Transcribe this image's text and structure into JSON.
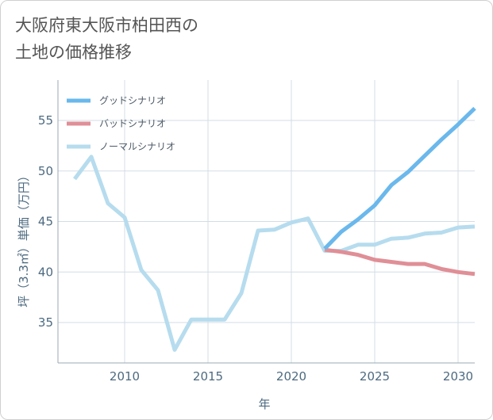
{
  "title_lines": [
    "大阪府東大阪市柏田西の",
    "土地の価格推移"
  ],
  "chart_data": {
    "type": "line",
    "title": "大阪府東大阪市柏田西の土地の価格推移",
    "xlabel": "年",
    "ylabel": "坪（3.3㎡）単価（万円）",
    "xlim": [
      2006,
      2031
    ],
    "ylim": [
      31,
      59
    ],
    "xticks": [
      2010,
      2015,
      2020,
      2025,
      2030
    ],
    "yticks": [
      35,
      40,
      45,
      50,
      55
    ],
    "grid": true,
    "legend_position": "top-left",
    "series": [
      {
        "name": "グッドシナリオ",
        "color": "#6ab8ec",
        "x": [
          2022,
          2023,
          2024,
          2025,
          2026,
          2027,
          2028,
          2029,
          2030,
          2031
        ],
        "y": [
          42.3,
          44.0,
          45.2,
          46.6,
          48.6,
          49.9,
          51.5,
          53.1,
          54.6,
          56.2
        ]
      },
      {
        "name": "バッドシナリオ",
        "color": "#e08f97",
        "x": [
          2022,
          2023,
          2024,
          2025,
          2026,
          2027,
          2028,
          2029,
          2030,
          2031
        ],
        "y": [
          42.2,
          42.0,
          41.7,
          41.2,
          41.0,
          40.8,
          40.8,
          40.3,
          40.0,
          39.8
        ]
      },
      {
        "name": "ノーマルシナリオ",
        "color": "#b6dcee",
        "x": [
          2007,
          2008,
          2009,
          2010,
          2011,
          2012,
          2013,
          2014,
          2015,
          2016,
          2017,
          2018,
          2019,
          2020,
          2021,
          2022,
          2023,
          2024,
          2025,
          2026,
          2027,
          2028,
          2029,
          2030,
          2031
        ],
        "y": [
          49.2,
          51.4,
          46.8,
          45.4,
          40.2,
          38.2,
          32.3,
          35.3,
          35.3,
          35.3,
          37.9,
          44.1,
          44.2,
          44.9,
          45.3,
          42.1,
          42.1,
          42.7,
          42.7,
          43.3,
          43.4,
          43.8,
          43.9,
          44.4,
          44.5
        ]
      }
    ]
  }
}
